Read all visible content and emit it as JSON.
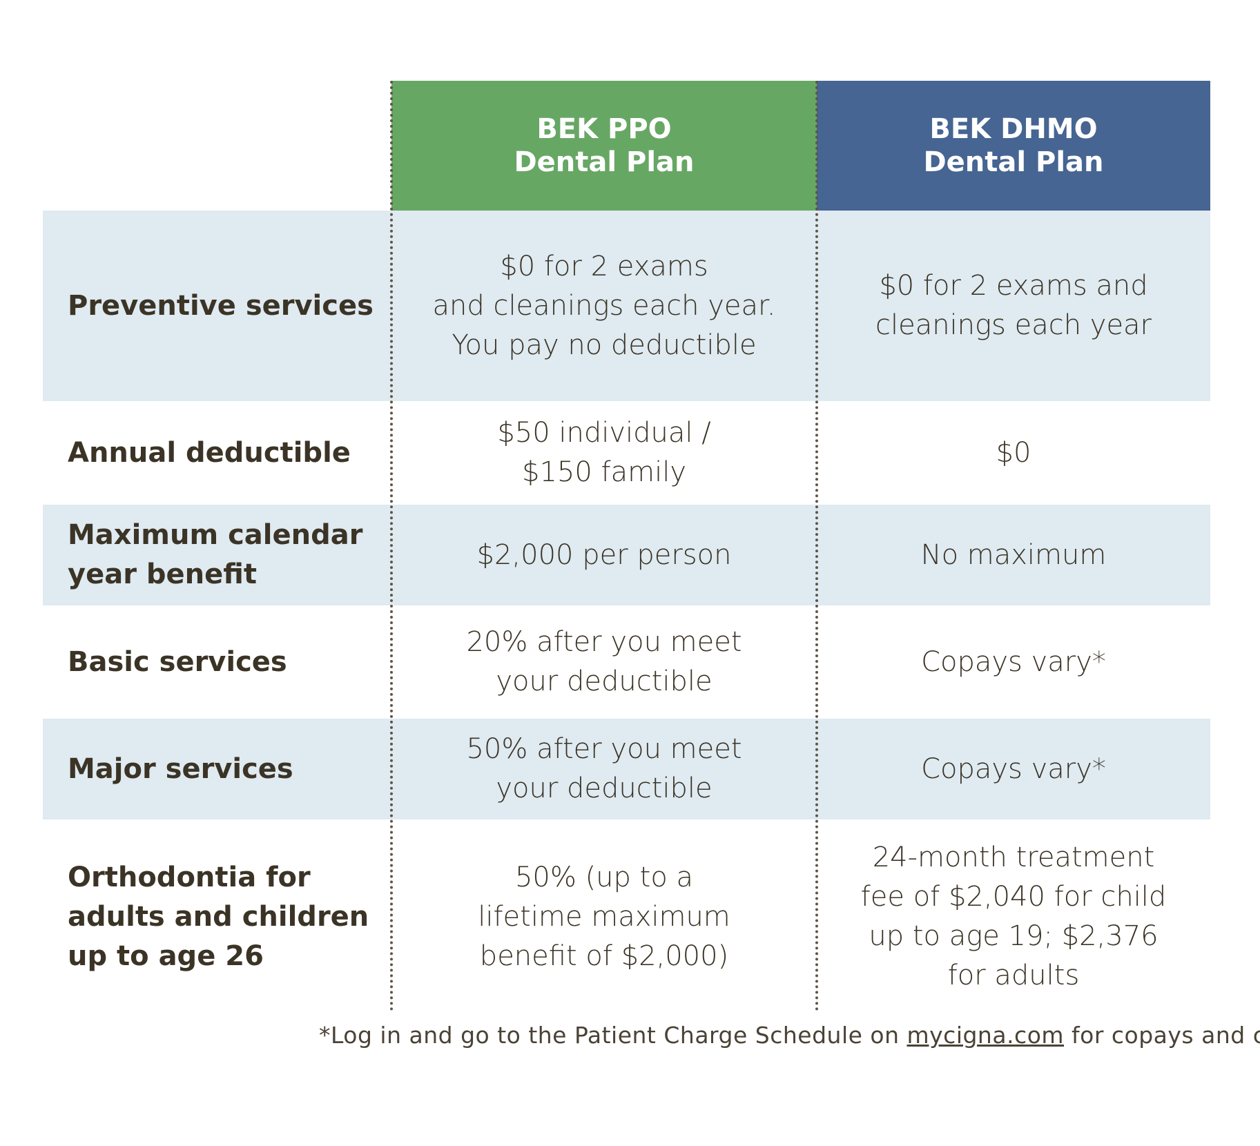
{
  "header": {
    "ppo_line1": "BEK PPO",
    "ppo_line2": "Dental Plan",
    "dhmo_line1": "BEK DHMO",
    "dhmo_line2": "Dental Plan"
  },
  "rows": [
    {
      "label": "Preventive services",
      "ppo": "$0 for 2 exams\nand cleanings each year.\nYou pay no deductible",
      "dhmo": "$0 for 2 exams and\ncleanings each year"
    },
    {
      "label": "Annual deductible",
      "ppo": "$50 individual /\n$150 family",
      "dhmo": "$0"
    },
    {
      "label": "Maximum calendar year benefit",
      "ppo": "$2,000 per person",
      "dhmo": "No maximum"
    },
    {
      "label": "Basic services",
      "ppo": "20% after you meet\nyour deductible",
      "dhmo": "Copays vary*"
    },
    {
      "label": "Major services",
      "ppo": "50% after you meet\nyour deductible",
      "dhmo": "Copays vary*"
    },
    {
      "label": "Orthodontia for adults and children up to age 26",
      "ppo": "50% (up to a\nlifetime maximum\nbenefit of $2,000)",
      "dhmo": "24-month treatment\nfee of $2,040 for child\nup to age 19; $2,376\nfor adults"
    }
  ],
  "footnote": {
    "before": "*Log in and go to the Patient Charge Schedule on ",
    "link": "mycigna.com",
    "after": " for copays and costs."
  },
  "colors": {
    "ppo_header": "#67a764",
    "dhmo_header": "#466592",
    "row_shade": "#dfeaf1",
    "text": "#3b3426"
  }
}
